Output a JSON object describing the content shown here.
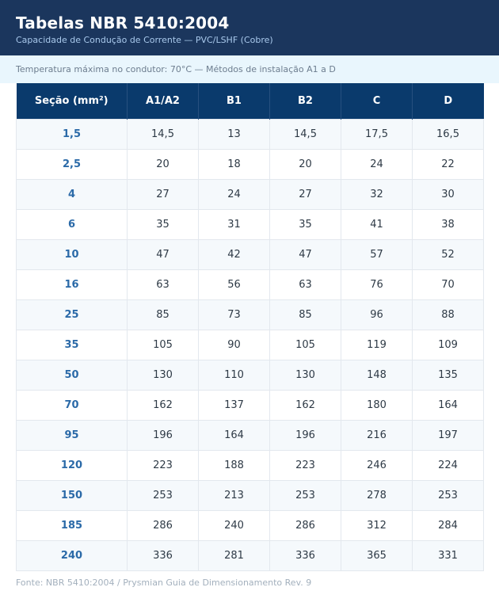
{
  "header": {
    "title": "Tabelas NBR 5410:2004",
    "subtitle": "Capacidade de Condução de Corrente — PVC/LSHF (Cobre)"
  },
  "info": "Temperatura máxima no condutor: 70°C — Métodos de instalação A1 a D",
  "table": {
    "columns": [
      "Seção (mm²)",
      "A1/A2",
      "B1",
      "B2",
      "C",
      "D"
    ],
    "rows": [
      [
        "1,5",
        "14,5",
        "13",
        "14,5",
        "17,5",
        "16,5"
      ],
      [
        "2,5",
        "20",
        "18",
        "20",
        "24",
        "22"
      ],
      [
        "4",
        "27",
        "24",
        "27",
        "32",
        "30"
      ],
      [
        "6",
        "35",
        "31",
        "35",
        "41",
        "38"
      ],
      [
        "10",
        "47",
        "42",
        "47",
        "57",
        "52"
      ],
      [
        "16",
        "63",
        "56",
        "63",
        "76",
        "70"
      ],
      [
        "25",
        "85",
        "73",
        "85",
        "96",
        "88"
      ],
      [
        "35",
        "105",
        "90",
        "105",
        "119",
        "109"
      ],
      [
        "50",
        "130",
        "110",
        "130",
        "148",
        "135"
      ],
      [
        "70",
        "162",
        "137",
        "162",
        "180",
        "164"
      ],
      [
        "95",
        "196",
        "164",
        "196",
        "216",
        "197"
      ],
      [
        "120",
        "223",
        "188",
        "223",
        "246",
        "224"
      ],
      [
        "150",
        "253",
        "213",
        "253",
        "278",
        "253"
      ],
      [
        "185",
        "286",
        "240",
        "286",
        "312",
        "284"
      ],
      [
        "240",
        "336",
        "281",
        "336",
        "365",
        "331"
      ]
    ]
  },
  "footer": "Fonte: NBR 5410:2004 / Prysmian Guia de Dimensionamento Rev. 9",
  "colors": {
    "header_bg": "#1b365d",
    "table_header_bg": "#0a3a6c",
    "section_text": "#2b6aa8",
    "info_bg": "#e9f6fd"
  }
}
